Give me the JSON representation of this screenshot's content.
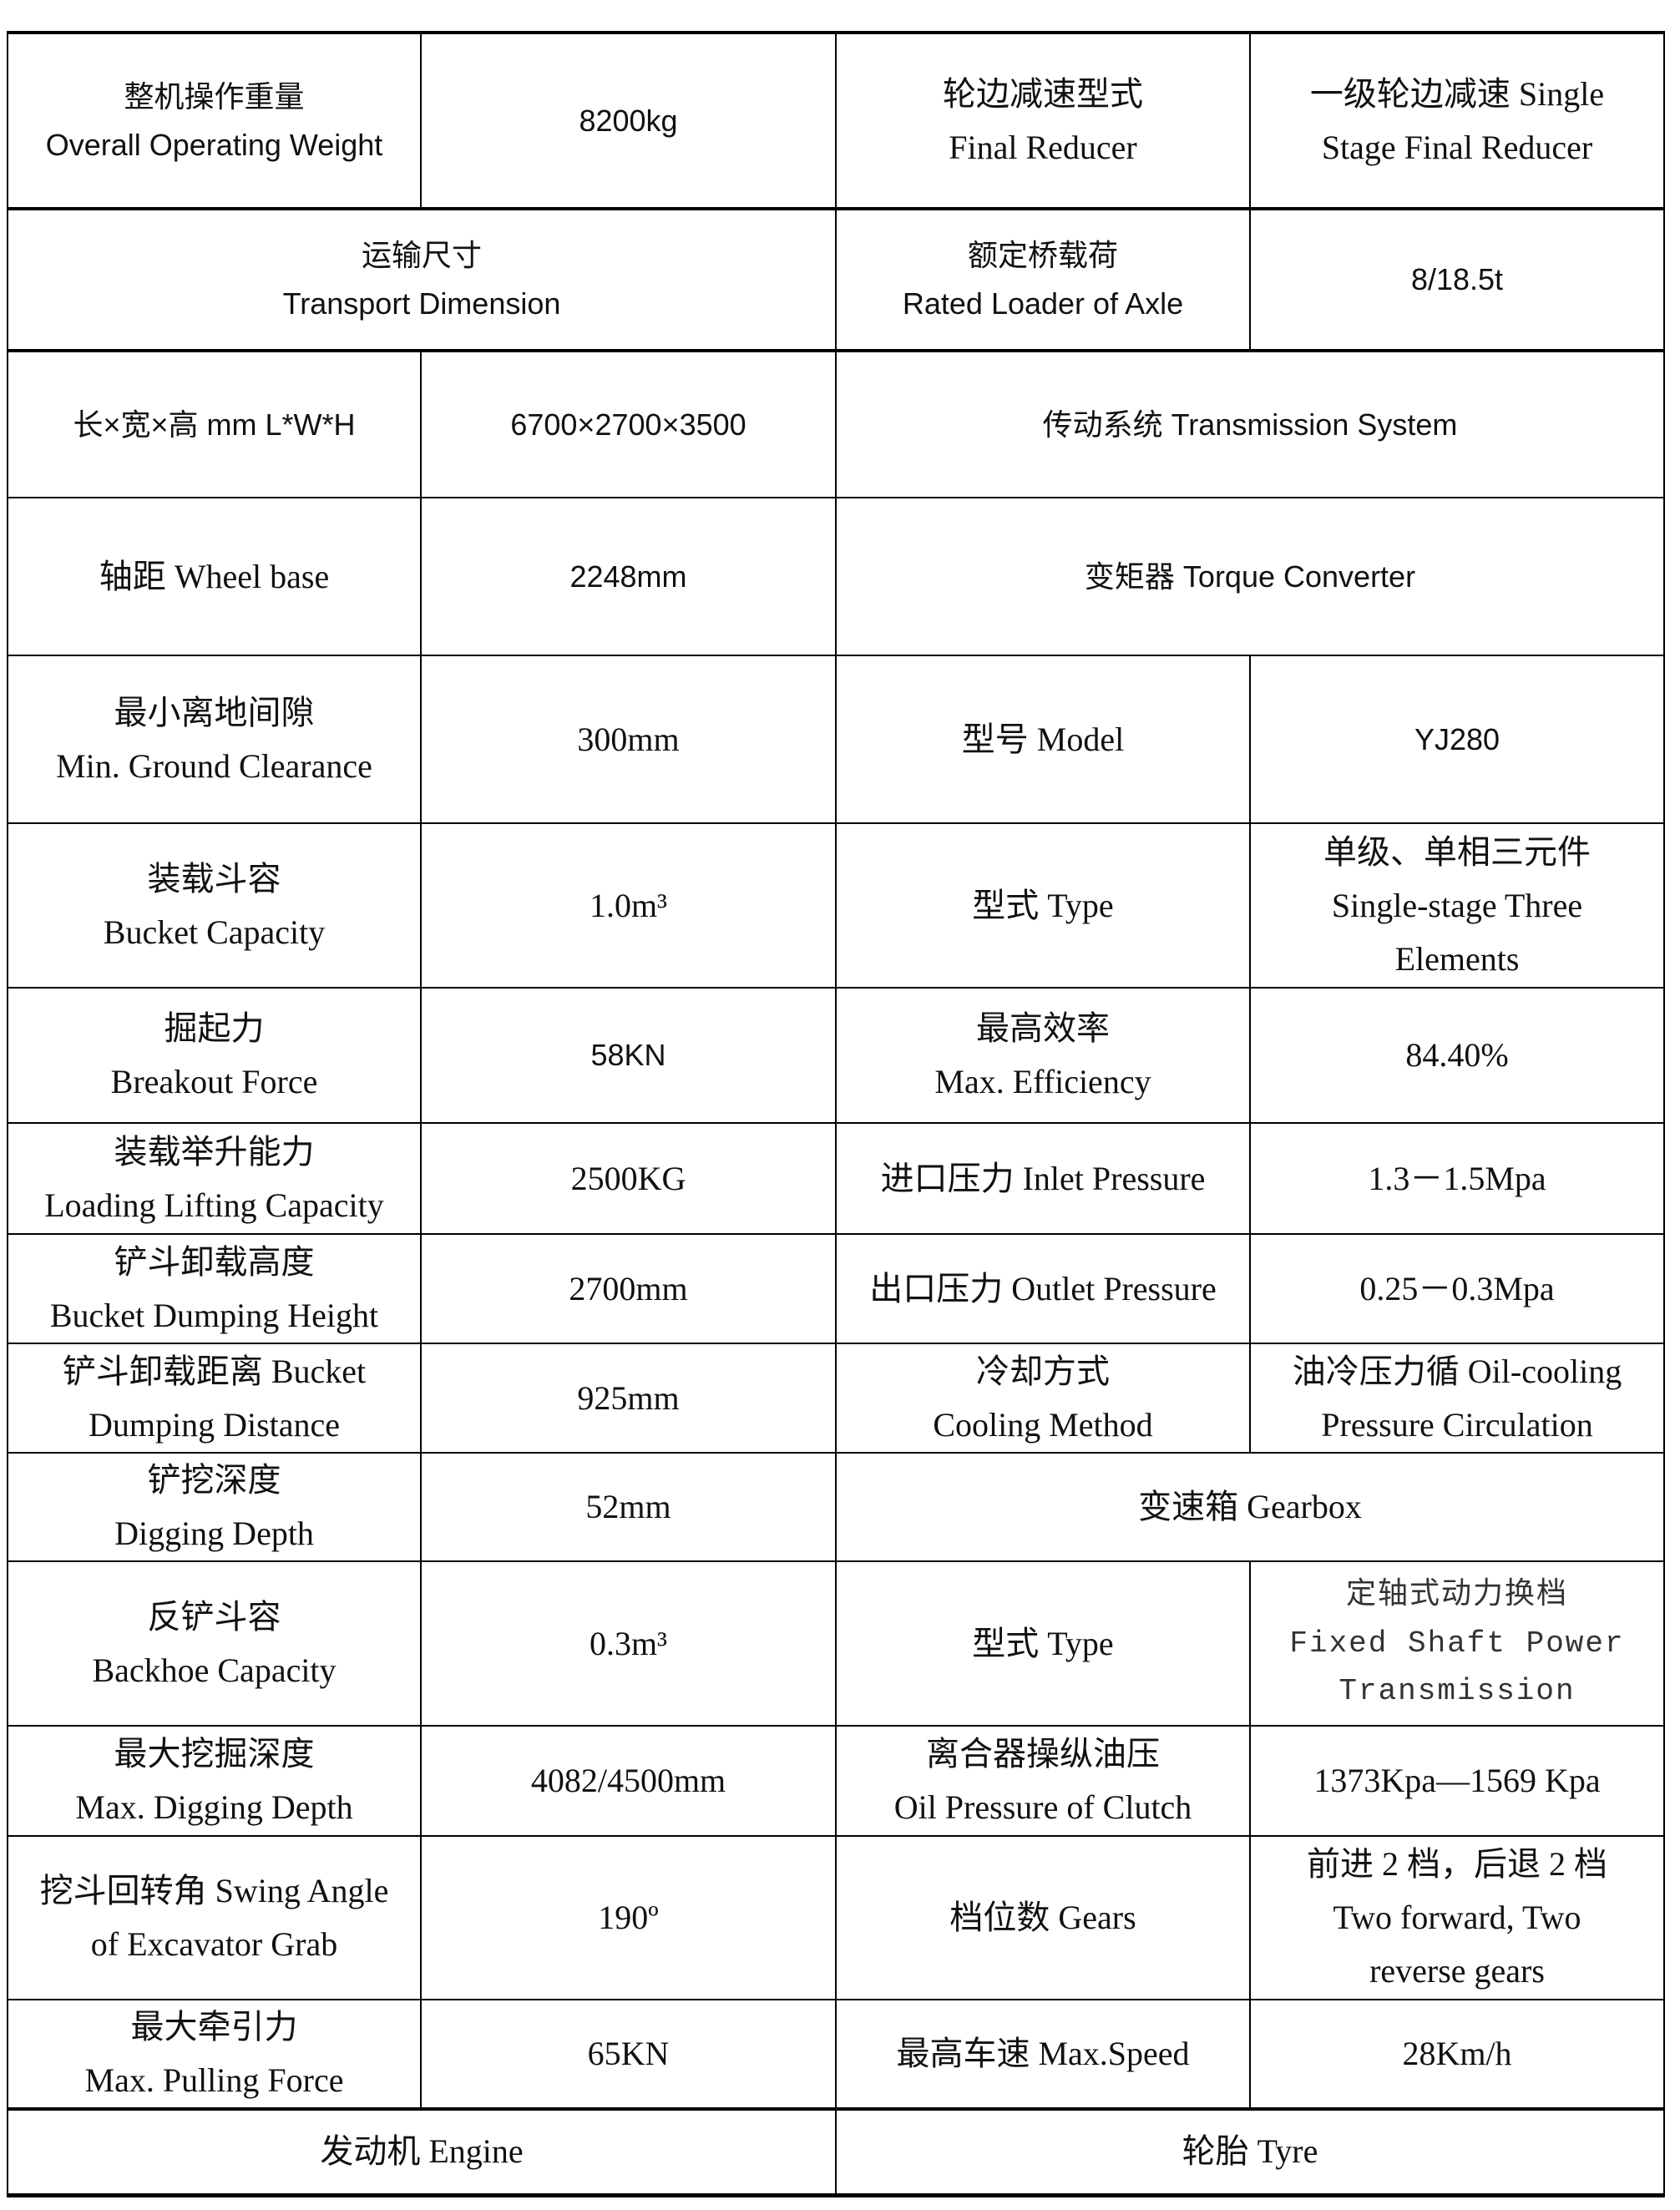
{
  "rows": [
    [
      "整机操作重量\nOverall Operating Weight",
      "8200kg",
      "轮边减速型式\nFinal Reducer",
      "一级轮边减速 Single\nStage Final Reducer"
    ],
    [
      "运输尺寸\nTransport Dimension",
      "额定桥载荷\nRated Loader of Axle",
      "8/18.5t"
    ],
    [
      "长×宽×高 mm L*W*H",
      "6700×2700×3500",
      "传动系统 Transmission System"
    ],
    [
      "轴距  Wheel base",
      "2248mm",
      "变矩器 Torque Converter"
    ],
    [
      "最小离地间隙\nMin. Ground Clearance",
      "300mm",
      "型号 Model",
      "YJ280"
    ],
    [
      "装载斗容\nBucket Capacity",
      "1.0m³",
      "型式 Type",
      "单级、单相三元件\nSingle-stage Three\nElements"
    ],
    [
      "掘起力\nBreakout Force",
      "58KN",
      "最高效率\nMax. Efficiency",
      "84.40%"
    ],
    [
      "装载举升能力\nLoading Lifting Capacity",
      "2500KG",
      "进口压力 Inlet Pressure",
      "1.3－1.5Mpa"
    ],
    [
      "铲斗卸载高度\nBucket Dumping Height",
      "2700mm",
      "出口压力 Outlet Pressure",
      "0.25－0.3Mpa"
    ],
    [
      "铲斗卸载距离 Bucket\nDumping Distance",
      "925mm",
      "冷却方式\nCooling Method",
      "油冷压力循 Oil-cooling\nPressure Circulation"
    ],
    [
      "铲挖深度\nDigging Depth",
      "52mm",
      "变速箱 Gearbox"
    ],
    [
      "反铲斗容\nBackhoe Capacity",
      "0.3m³",
      "型式 Type",
      "定轴式动力换档\nFixed Shaft Power\nTransmission"
    ],
    [
      "最大挖掘深度\nMax. Digging Depth",
      "4082/4500mm",
      "离合器操纵油压\nOil Pressure of Clutch",
      "1373Kpa—1569 Kpa"
    ],
    [
      "挖斗回转角 Swing Angle\nof Excavator Grab",
      "190º",
      "档位数 Gears",
      "前进 2 档，后退 2 档\nTwo forward, Two\nreverse gears"
    ],
    [
      "最大牵引力\nMax. Pulling Force",
      "65KN",
      "最高车速 Max.Speed",
      "28Km/h"
    ],
    [
      "发动机 Engine",
      "轮胎 Tyre"
    ]
  ]
}
